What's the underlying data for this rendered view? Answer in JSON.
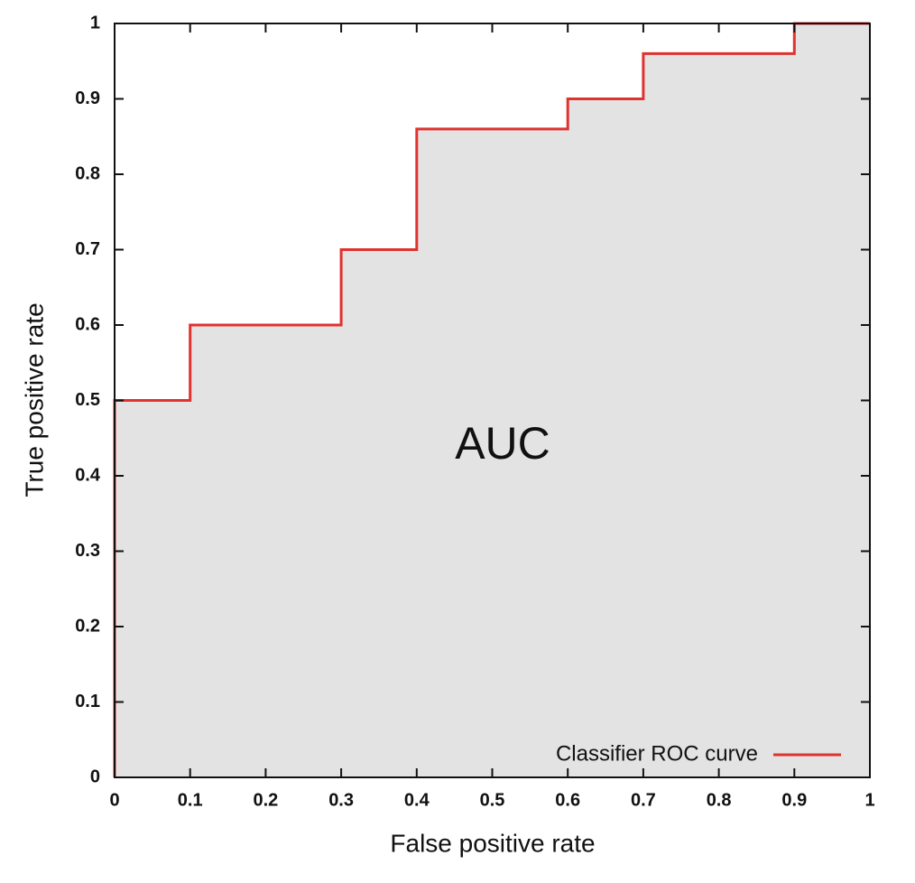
{
  "chart_data": {
    "type": "line",
    "xlabel": "False positive rate",
    "ylabel": "True positive rate",
    "annotation": "AUC",
    "x": [
      0,
      0,
      0.1,
      0.1,
      0.3,
      0.3,
      0.4,
      0.4,
      0.6,
      0.6,
      0.7,
      0.7,
      0.9,
      0.9,
      1
    ],
    "series": [
      {
        "name": "Classifier ROC curve",
        "color": "#e0332f",
        "values": [
          0,
          0.5,
          0.5,
          0.6,
          0.6,
          0.7,
          0.7,
          0.86,
          0.86,
          0.9,
          0.9,
          0.96,
          0.96,
          1,
          1
        ]
      }
    ],
    "fill_color": "#e3e3e3",
    "xlim": [
      0,
      1
    ],
    "ylim": [
      0,
      1
    ],
    "xticks": [
      0,
      0.1,
      0.2,
      0.3,
      0.4,
      0.5,
      0.6,
      0.7,
      0.8,
      0.9,
      1
    ],
    "yticks": [
      0,
      0.1,
      0.2,
      0.3,
      0.4,
      0.5,
      0.6,
      0.7,
      0.8,
      0.9,
      1
    ],
    "grid": false,
    "legend": "lower right"
  }
}
